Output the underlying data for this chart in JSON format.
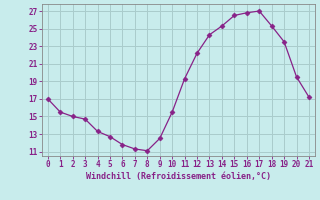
{
  "x": [
    0,
    1,
    2,
    3,
    4,
    5,
    6,
    7,
    8,
    9,
    10,
    11,
    12,
    13,
    14,
    15,
    16,
    17,
    18,
    19,
    20,
    21
  ],
  "y": [
    17,
    15.5,
    15,
    14.7,
    13.3,
    12.7,
    11.8,
    11.3,
    11.1,
    12.5,
    15.5,
    19.3,
    22.2,
    24.3,
    25.3,
    26.5,
    26.8,
    27.0,
    25.3,
    23.5,
    19.5,
    17.2
  ],
  "line_color": "#882288",
  "marker": "D",
  "marker_size": 2.5,
  "bg_color": "#c8ecec",
  "grid_color": "#aacccc",
  "xlabel": "Windchill (Refroidissement éolien,°C)",
  "xlabel_color": "#882288",
  "ylabel_ticks": [
    11,
    13,
    15,
    17,
    19,
    21,
    23,
    25,
    27
  ],
  "xtick_labels": [
    "0",
    "1",
    "2",
    "3",
    "4",
    "5",
    "6",
    "7",
    "8",
    "9",
    "10",
    "11",
    "12",
    "13",
    "14",
    "15",
    "16",
    "17",
    "18",
    "19",
    "20",
    "21"
  ],
  "xlim": [
    -0.5,
    21.5
  ],
  "ylim": [
    10.5,
    27.8
  ],
  "tick_color": "#882288",
  "axis_color": "#888888",
  "label_fontsize": 5.8,
  "tick_fontsize": 5.5,
  "xlabel_fontsize": 6.0
}
